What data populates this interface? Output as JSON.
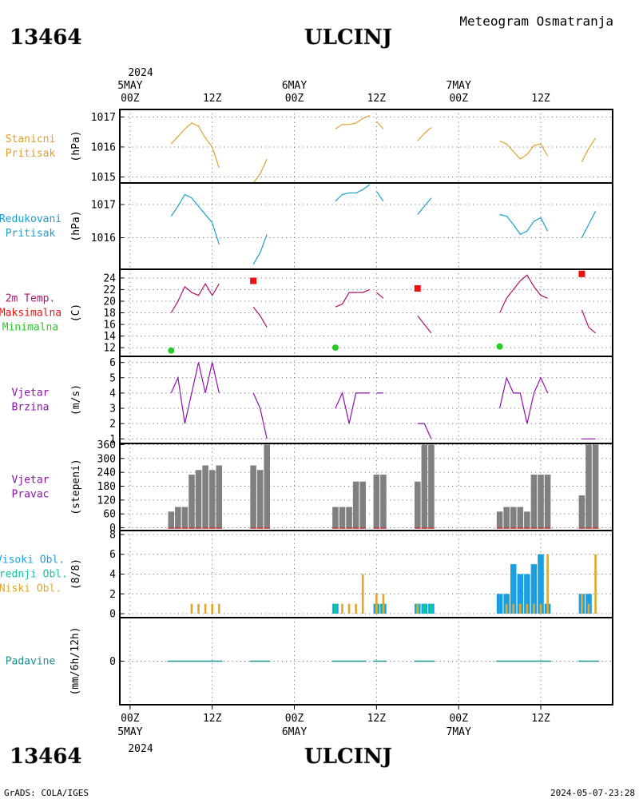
{
  "header": {
    "station_id": "13464",
    "station_name": "ULCINJ",
    "title": "Meteogram Osmatranja"
  },
  "footer": {
    "station_id": "13464",
    "station_name": "ULCINJ",
    "credit": "GrADS: COLA/IGES",
    "timestamp": "2024-05-07-23:28"
  },
  "time_axis": {
    "year": "2024",
    "day_labels": [
      "5MAY",
      "6MAY",
      "7MAY"
    ],
    "tick_labels": [
      "00Z",
      "12Z",
      "00Z",
      "12Z",
      "00Z",
      "12Z"
    ],
    "tick_hours": [
      0,
      12,
      24,
      36,
      48,
      60
    ],
    "range_hours": [
      -1.5,
      70.5
    ]
  },
  "colors": {
    "pressure_station": "#e0a030",
    "pressure_reduced": "#1a9fd0",
    "temperature": "#b0106a",
    "tmax": "#ee1111",
    "tmin": "#22cc22",
    "wind": "#9010b0",
    "bars_gray": "#808080",
    "calm_marker": "#cc3333",
    "cloud_high": "#1aa0e0",
    "cloud_mid": "#10c8a0",
    "cloud_low": "#e0a830",
    "precip": "#1a9090"
  },
  "chart_data": [
    {
      "type": "line",
      "name": "station-pressure",
      "label_lines": [
        "Stanicni",
        "Pritisak"
      ],
      "ylabel": "(hPa)",
      "ylim": [
        1014.8,
        1017.25
      ],
      "yticks": [
        1015,
        1016,
        1017
      ],
      "segments": [
        {
          "x": [
            6,
            7,
            8,
            9,
            10,
            11,
            12,
            13
          ],
          "y": [
            1016.1,
            1016.35,
            1016.6,
            1016.8,
            1016.7,
            1016.3,
            1016.0,
            1015.3
          ]
        },
        {
          "x": [
            18,
            19,
            20
          ],
          "y": [
            1014.8,
            1015.1,
            1015.6
          ]
        },
        {
          "x": [
            30,
            31,
            32,
            33,
            34,
            35
          ],
          "y": [
            1016.6,
            1016.75,
            1016.75,
            1016.8,
            1016.95,
            1017.05
          ]
        },
        {
          "x": [
            36,
            37
          ],
          "y": [
            1016.85,
            1016.6
          ]
        },
        {
          "x": [
            42,
            43,
            44
          ],
          "y": [
            1016.2,
            1016.45,
            1016.65
          ]
        },
        {
          "x": [
            54,
            55,
            56,
            57,
            58,
            59,
            60,
            61
          ],
          "y": [
            1016.2,
            1016.1,
            1015.85,
            1015.6,
            1015.75,
            1016.05,
            1016.1,
            1015.7
          ]
        },
        {
          "x": [
            66,
            67,
            68
          ],
          "y": [
            1015.5,
            1015.95,
            1016.3
          ]
        }
      ]
    },
    {
      "type": "line",
      "name": "reduced-pressure",
      "label_lines": [
        "Redukovani",
        "Pritisak"
      ],
      "ylabel": "(hPa)",
      "ylim": [
        1015.05,
        1017.65
      ],
      "yticks": [
        1016,
        1017
      ],
      "segments": [
        {
          "x": [
            6,
            7,
            8,
            9,
            10,
            11,
            12,
            13
          ],
          "y": [
            1016.65,
            1016.95,
            1017.3,
            1017.2,
            1016.95,
            1016.7,
            1016.45,
            1015.8
          ]
        },
        {
          "x": [
            18,
            19,
            20
          ],
          "y": [
            1015.2,
            1015.55,
            1016.1
          ]
        },
        {
          "x": [
            30,
            31,
            32,
            33,
            34,
            35
          ],
          "y": [
            1017.1,
            1017.3,
            1017.35,
            1017.35,
            1017.45,
            1017.6
          ]
        },
        {
          "x": [
            36,
            37
          ],
          "y": [
            1017.4,
            1017.1
          ]
        },
        {
          "x": [
            42,
            43,
            44
          ],
          "y": [
            1016.7,
            1016.95,
            1017.2
          ]
        },
        {
          "x": [
            54,
            55,
            56,
            57,
            58,
            59,
            60,
            61
          ],
          "y": [
            1016.7,
            1016.65,
            1016.4,
            1016.1,
            1016.2,
            1016.5,
            1016.6,
            1016.2
          ]
        },
        {
          "x": [
            66,
            67,
            68
          ],
          "y": [
            1016.0,
            1016.4,
            1016.8
          ]
        }
      ]
    },
    {
      "type": "line",
      "name": "temperature",
      "label_lines": [
        "2m Temp.",
        "Maksimalna",
        "Minimalna"
      ],
      "ylabel": "(C)",
      "ylim": [
        10.5,
        25.5
      ],
      "yticks": [
        12,
        14,
        16,
        18,
        20,
        22,
        24
      ],
      "segments": [
        {
          "x": [
            6,
            7,
            8,
            9,
            10,
            11,
            12,
            13
          ],
          "y": [
            18,
            20,
            22.5,
            21.5,
            21,
            23,
            21,
            23
          ]
        },
        {
          "x": [
            18,
            19,
            20
          ],
          "y": [
            19,
            17.5,
            15.5
          ]
        },
        {
          "x": [
            30,
            31,
            32,
            33,
            34,
            35
          ],
          "y": [
            19,
            19.5,
            21.5,
            21.5,
            21.5,
            22
          ]
        },
        {
          "x": [
            36,
            37
          ],
          "y": [
            21.5,
            20.5
          ]
        },
        {
          "x": [
            42,
            43,
            44
          ],
          "y": [
            17.5,
            16,
            14.5
          ]
        },
        {
          "x": [
            54,
            55,
            56,
            57,
            58,
            59,
            60,
            61
          ],
          "y": [
            18,
            20.5,
            22,
            23.5,
            24.5,
            22.5,
            21,
            20.5
          ]
        },
        {
          "x": [
            66,
            67,
            68
          ],
          "y": [
            18.5,
            15.5,
            14.5
          ]
        }
      ],
      "tmax": [
        {
          "x": 18,
          "y": 23.5
        },
        {
          "x": 42,
          "y": 22.2
        },
        {
          "x": 66,
          "y": 24.7
        }
      ],
      "tmin": [
        {
          "x": 6,
          "y": 11.5
        },
        {
          "x": 30,
          "y": 12
        },
        {
          "x": 54,
          "y": 12.2
        }
      ]
    },
    {
      "type": "line",
      "name": "wind-speed",
      "label_lines": [
        "Vjetar",
        "Brzina"
      ],
      "ylabel": "(m/s)",
      "ylim": [
        0.7,
        6.4
      ],
      "yticks": [
        1,
        2,
        3,
        4,
        5,
        6
      ],
      "segments": [
        {
          "x": [
            6,
            7,
            8,
            9,
            10,
            11,
            12,
            13
          ],
          "y": [
            4,
            5,
            2,
            4,
            6,
            4,
            6,
            4
          ]
        },
        {
          "x": [
            18,
            19,
            20
          ],
          "y": [
            4,
            3,
            1
          ]
        },
        {
          "x": [
            30,
            31,
            32,
            33,
            34,
            35
          ],
          "y": [
            3,
            4,
            2,
            4,
            4,
            4
          ]
        },
        {
          "x": [
            36,
            37
          ],
          "y": [
            4,
            4
          ]
        },
        {
          "x": [
            42,
            43,
            44
          ],
          "y": [
            2,
            2,
            1
          ]
        },
        {
          "x": [
            54,
            55,
            56,
            57,
            58,
            59,
            60,
            61
          ],
          "y": [
            3,
            5,
            4,
            4,
            2,
            4,
            5,
            4
          ]
        },
        {
          "x": [
            66,
            67,
            68
          ],
          "y": [
            1,
            1,
            1
          ]
        }
      ]
    },
    {
      "type": "bar",
      "name": "wind-direction",
      "label_lines": [
        "Vjetar",
        "Pravac"
      ],
      "ylabel": "(stepeni)",
      "ylim": [
        -12,
        365
      ],
      "yticks": [
        0,
        60,
        120,
        180,
        240,
        300,
        360
      ],
      "ytick_labels": [
        "0",
        "60",
        "120",
        "180",
        "240",
        "300",
        "360"
      ],
      "x": [
        6,
        7,
        8,
        9,
        10,
        11,
        12,
        13,
        18,
        19,
        20,
        30,
        31,
        32,
        33,
        34,
        36,
        37,
        42,
        43,
        44,
        54,
        55,
        56,
        57,
        58,
        59,
        60,
        61,
        66,
        67,
        68
      ],
      "values": [
        70,
        90,
        90,
        230,
        250,
        270,
        250,
        270,
        270,
        250,
        360,
        90,
        90,
        90,
        200,
        200,
        230,
        230,
        200,
        360,
        360,
        70,
        90,
        90,
        90,
        70,
        230,
        230,
        230,
        140,
        360,
        360
      ]
    },
    {
      "type": "bar",
      "name": "cloud-cover",
      "label_lines": [
        "Visoki Obl.",
        "Srednji Obl.",
        "Niski Obl."
      ],
      "ylabel": "(8/8)",
      "ylim": [
        -0.4,
        8.4
      ],
      "yticks": [
        0,
        2,
        4,
        6,
        8
      ],
      "series": [
        {
          "name": "Visoki Obl.",
          "x": [
            30,
            36,
            37,
            42,
            43,
            44,
            54,
            55,
            56,
            57,
            58,
            59,
            60,
            61,
            66,
            67
          ],
          "values": [
            1,
            1,
            1,
            1,
            1,
            1,
            2,
            2,
            5,
            4,
            4,
            5,
            6,
            1,
            2,
            2
          ]
        },
        {
          "name": "Srednji Obl.",
          "x": [
            30,
            36,
            37,
            42,
            43,
            44
          ],
          "values": [
            1,
            1,
            1,
            1,
            1,
            1
          ]
        },
        {
          "name": "Niski Obl.",
          "x": [
            9,
            10,
            11,
            12,
            13,
            31,
            32,
            33,
            34,
            36,
            37,
            42,
            55,
            56,
            57,
            58,
            59,
            60,
            61,
            66,
            67,
            68
          ],
          "values": [
            1,
            1,
            1,
            1,
            1,
            1,
            1,
            1,
            4,
            2,
            2,
            1,
            1,
            1,
            1,
            1,
            1,
            1,
            6,
            2,
            1,
            6
          ]
        }
      ]
    },
    {
      "type": "bar",
      "name": "precipitation",
      "label_lines": [
        "Padavine"
      ],
      "ylabel": "(mm/6h/12h)",
      "ylim": [
        -5,
        5
      ],
      "yticks": [
        0
      ],
      "x": [
        6,
        7,
        8,
        9,
        10,
        11,
        12,
        13,
        18,
        19,
        20,
        30,
        31,
        32,
        33,
        34,
        36,
        37,
        42,
        43,
        44,
        54,
        55,
        56,
        57,
        58,
        59,
        60,
        61,
        66,
        67,
        68
      ],
      "values": [
        0,
        0,
        0,
        0,
        0,
        0,
        0,
        0,
        0,
        0,
        0,
        0,
        0,
        0,
        0,
        0,
        0,
        0,
        0,
        0,
        0,
        0,
        0,
        0,
        0,
        0,
        0,
        0,
        0,
        0,
        0,
        0
      ]
    }
  ]
}
